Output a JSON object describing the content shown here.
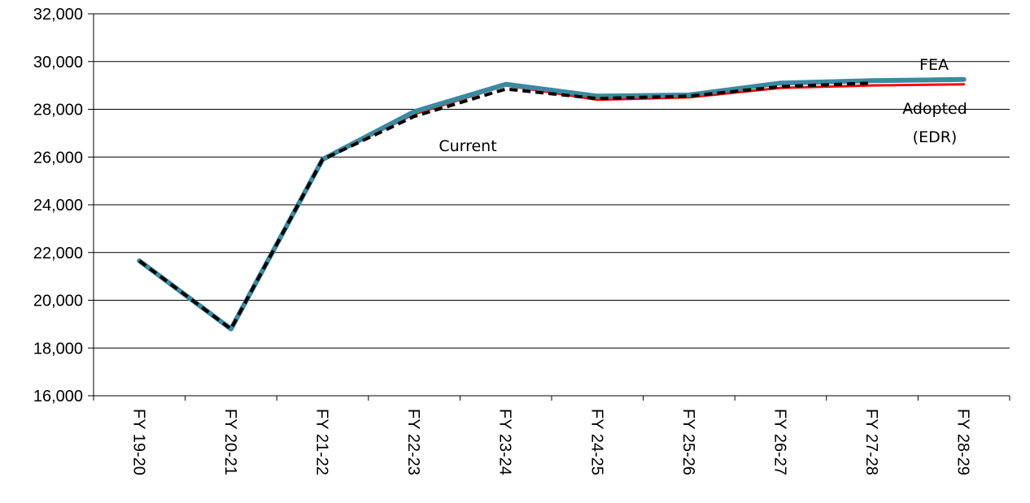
{
  "chart_data": {
    "type": "line",
    "title": "",
    "xlabel": "",
    "ylabel": "",
    "categories": [
      "FY 19-20",
      "FY 20-21",
      "FY 21-22",
      "FY 22-23",
      "FY 23-24",
      "FY 24-25",
      "FY 25-26",
      "FY 26-27",
      "FY 27-28",
      "FY 28-29"
    ],
    "ylim": [
      16000,
      32000
    ],
    "yticks": [
      16000,
      18000,
      20000,
      22000,
      24000,
      26000,
      28000,
      30000,
      32000
    ],
    "ytick_labels": [
      "16,000",
      "18,000",
      "20,000",
      "22,000",
      "24,000",
      "26,000",
      "28,000",
      "30,000",
      "32,000"
    ],
    "grid": "horizontal",
    "legend": "none",
    "series": [
      {
        "name": "Adopted (EDR)",
        "color": "#ff0000",
        "style": "solid-thin",
        "values": [
          21650,
          18800,
          25900,
          27800,
          29000,
          28400,
          28500,
          28900,
          29000,
          29050
        ]
      },
      {
        "name": "FEA",
        "color": "#3a8aa0",
        "style": "solid-thick",
        "values": [
          21650,
          18800,
          25900,
          27900,
          29050,
          28550,
          28600,
          29100,
          29200,
          29250
        ]
      },
      {
        "name": "Current",
        "color": "#000000",
        "style": "dashed",
        "values": [
          21650,
          18800,
          25900,
          27700,
          28850,
          28450,
          28550,
          28950,
          29100,
          null
        ]
      }
    ],
    "annotations": [
      {
        "id": "fea",
        "lines": [
          "FEA"
        ]
      },
      {
        "id": "adopted",
        "lines": [
          "Adopted",
          "(EDR)"
        ]
      },
      {
        "id": "current",
        "lines": [
          "Current"
        ]
      }
    ]
  }
}
